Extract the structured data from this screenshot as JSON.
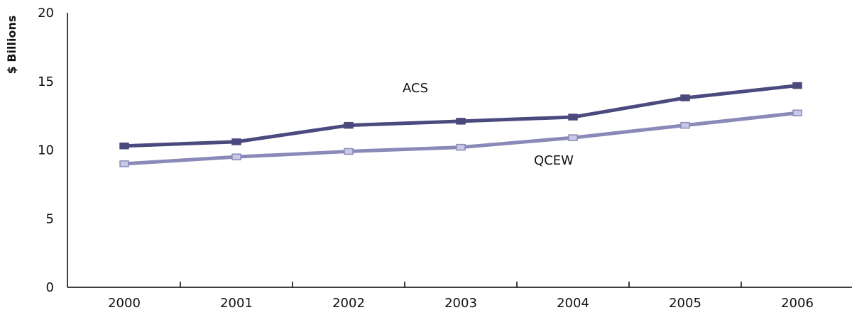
{
  "chart_data": {
    "type": "line",
    "ylabel": "$ Billions",
    "xlabel": "",
    "title": "",
    "ylim": [
      0,
      20
    ],
    "yticks": [
      0,
      5,
      10,
      15,
      20
    ],
    "categories": [
      "2000",
      "2001",
      "2002",
      "2003",
      "2004",
      "2005",
      "2006"
    ],
    "grid": false,
    "series": [
      {
        "name": "ACS",
        "values": [
          10.3,
          10.6,
          11.8,
          12.1,
          12.4,
          13.8,
          14.7
        ],
        "color": "#4b4a7f",
        "marker_fill": "#4b4a7f"
      },
      {
        "name": "QCEW",
        "values": [
          9.0,
          9.5,
          9.9,
          10.2,
          10.9,
          11.8,
          12.7
        ],
        "color": "#8a89b8",
        "marker_fill": "#c9c8e6"
      }
    ]
  }
}
